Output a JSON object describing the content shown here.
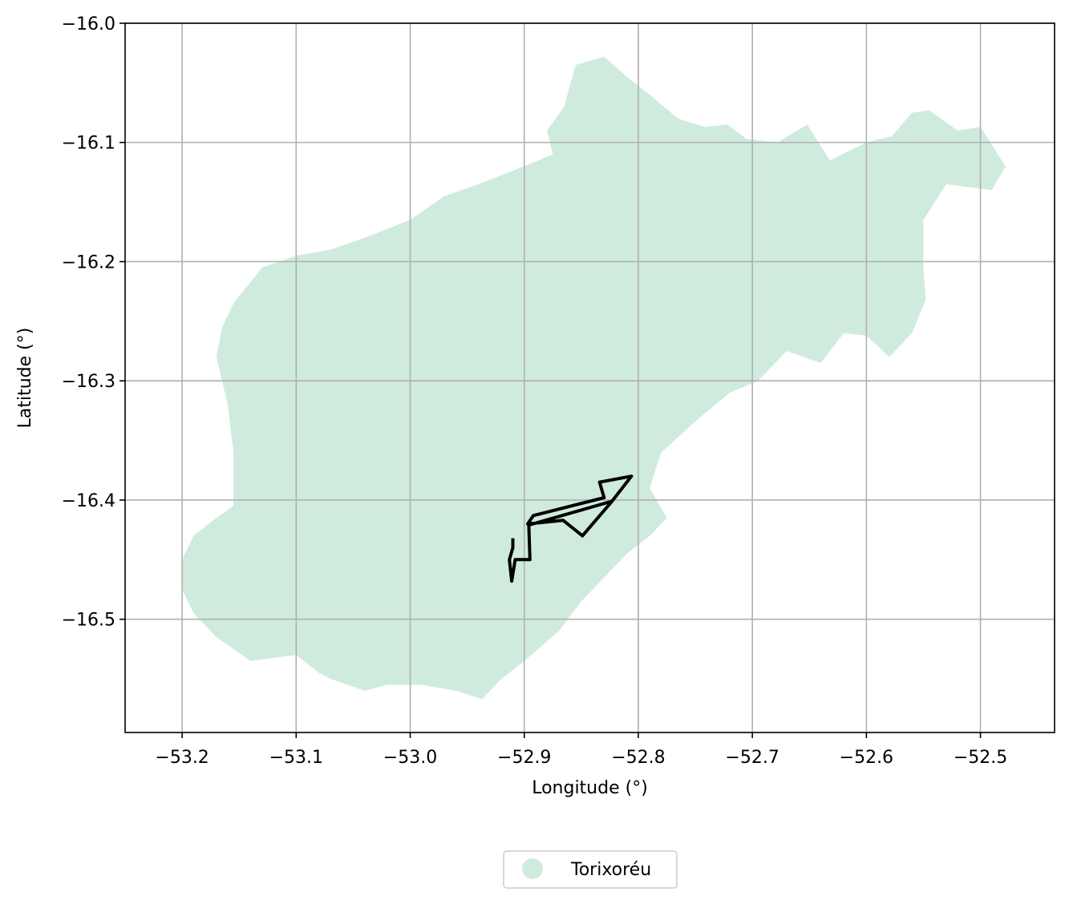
{
  "chart_data": {
    "type": "map",
    "xlabel": "Longitude (°)",
    "ylabel": "Latitude (°)",
    "xlim": [
      -53.25,
      -52.435
    ],
    "ylim": [
      -16.595,
      -16.0
    ],
    "xticks": [
      -53.2,
      -53.1,
      -53.0,
      -52.9,
      -52.8,
      -52.7,
      -52.6,
      -52.5
    ],
    "xtick_labels": [
      "−53.2",
      "−53.1",
      "−53.0",
      "−52.9",
      "−52.8",
      "−52.7",
      "−52.6",
      "−52.5"
    ],
    "yticks": [
      -16.0,
      -16.1,
      -16.2,
      -16.3,
      -16.4,
      -16.5
    ],
    "ytick_labels": [
      "−16.0",
      "−16.1",
      "−16.2",
      "−16.3",
      "−16.4",
      "−16.5"
    ],
    "grid": true,
    "legend": {
      "placement": "below",
      "entries": [
        {
          "label": "Torixoréu",
          "color": "#cfebde"
        }
      ]
    },
    "region": {
      "name": "Torixoréu",
      "fill": "#cfebde",
      "boundary": [
        [
          -52.855,
          -16.035
        ],
        [
          -52.83,
          -16.028
        ],
        [
          -52.81,
          -16.045
        ],
        [
          -52.79,
          -16.06
        ],
        [
          -52.765,
          -16.08
        ],
        [
          -52.742,
          -16.087
        ],
        [
          -52.722,
          -16.085
        ],
        [
          -52.705,
          -16.097
        ],
        [
          -52.678,
          -16.1
        ],
        [
          -52.652,
          -16.085
        ],
        [
          -52.632,
          -16.115
        ],
        [
          -52.6,
          -16.1
        ],
        [
          -52.578,
          -16.095
        ],
        [
          -52.56,
          -16.075
        ],
        [
          -52.545,
          -16.073
        ],
        [
          -52.52,
          -16.09
        ],
        [
          -52.5,
          -16.087
        ],
        [
          -52.478,
          -16.12
        ],
        [
          -52.49,
          -16.14
        ],
        [
          -52.53,
          -16.135
        ],
        [
          -52.55,
          -16.165
        ],
        [
          -52.55,
          -16.205
        ],
        [
          -52.548,
          -16.232
        ],
        [
          -52.56,
          -16.26
        ],
        [
          -52.58,
          -16.28
        ],
        [
          -52.6,
          -16.262
        ],
        [
          -52.62,
          -16.26
        ],
        [
          -52.64,
          -16.285
        ],
        [
          -52.67,
          -16.275
        ],
        [
          -52.695,
          -16.3
        ],
        [
          -52.72,
          -16.31
        ],
        [
          -52.745,
          -16.33
        ],
        [
          -52.78,
          -16.36
        ],
        [
          -52.79,
          -16.39
        ],
        [
          -52.775,
          -16.415
        ],
        [
          -52.79,
          -16.43
        ],
        [
          -52.81,
          -16.445
        ],
        [
          -52.83,
          -16.465
        ],
        [
          -52.85,
          -16.485
        ],
        [
          -52.87,
          -16.51
        ],
        [
          -52.9,
          -16.535
        ],
        [
          -52.92,
          -16.55
        ],
        [
          -52.937,
          -16.567
        ],
        [
          -52.96,
          -16.56
        ],
        [
          -52.99,
          -16.555
        ],
        [
          -53.02,
          -16.555
        ],
        [
          -53.04,
          -16.56
        ],
        [
          -53.07,
          -16.55
        ],
        [
          -53.08,
          -16.545
        ],
        [
          -53.1,
          -16.53
        ],
        [
          -53.14,
          -16.535
        ],
        [
          -53.17,
          -16.515
        ],
        [
          -53.19,
          -16.495
        ],
        [
          -53.2,
          -16.475
        ],
        [
          -53.2,
          -16.45
        ],
        [
          -53.19,
          -16.43
        ],
        [
          -53.17,
          -16.415
        ],
        [
          -53.155,
          -16.405
        ],
        [
          -53.155,
          -16.36
        ],
        [
          -53.16,
          -16.32
        ],
        [
          -53.17,
          -16.28
        ],
        [
          -53.165,
          -16.255
        ],
        [
          -53.155,
          -16.235
        ],
        [
          -53.13,
          -16.205
        ],
        [
          -53.1,
          -16.195
        ],
        [
          -53.07,
          -16.19
        ],
        [
          -53.04,
          -16.18
        ],
        [
          -53.0,
          -16.165
        ],
        [
          -52.97,
          -16.145
        ],
        [
          -52.94,
          -16.135
        ],
        [
          -52.9,
          -16.12
        ],
        [
          -52.875,
          -16.11
        ],
        [
          -52.88,
          -16.09
        ],
        [
          -52.865,
          -16.07
        ]
      ]
    },
    "outline_polygon": {
      "stroke": "#000000",
      "points": [
        [
          -52.806,
          -16.38
        ],
        [
          -52.834,
          -16.385
        ],
        [
          -52.83,
          -16.398
        ],
        [
          -52.892,
          -16.413
        ],
        [
          -52.897,
          -16.42
        ],
        [
          -52.866,
          -16.417
        ],
        [
          -52.849,
          -16.43
        ],
        [
          -52.823,
          -16.401
        ],
        [
          -52.806,
          -16.38
        ],
        [
          -52.823,
          -16.401
        ],
        [
          -52.896,
          -16.421
        ],
        [
          -52.895,
          -16.45
        ],
        [
          -52.908,
          -16.45
        ],
        [
          -52.911,
          -16.468
        ],
        [
          -52.913,
          -16.45
        ],
        [
          -52.91,
          -16.44
        ],
        [
          -52.91,
          -16.432
        ]
      ]
    }
  }
}
